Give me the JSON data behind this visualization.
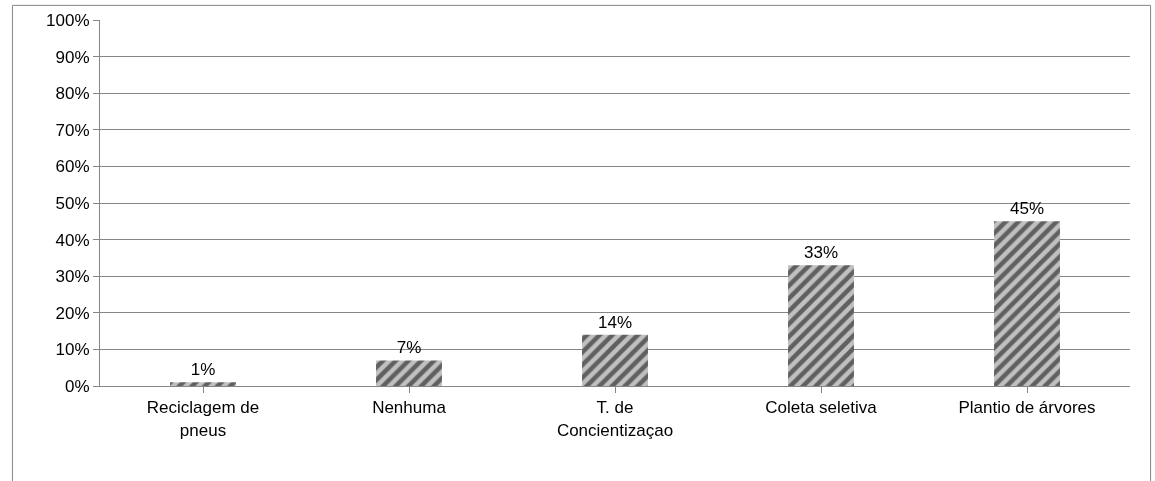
{
  "chart_data": {
    "type": "bar",
    "categories": [
      "Reciclagem de\npneus",
      "Nenhuma",
      "T. de\nConcientizaçao",
      "Coleta seletiva",
      "Plantio de árvores"
    ],
    "values": [
      1,
      7,
      14,
      33,
      45
    ],
    "value_labels": [
      "1%",
      "7%",
      "14%",
      "33%",
      "45%"
    ],
    "color": "#c0c0c0",
    "ylim": [
      0,
      100
    ],
    "yticks": [
      {
        "value": 0,
        "label": "0%"
      },
      {
        "value": 10,
        "label": "10%"
      },
      {
        "value": 20,
        "label": "20%"
      },
      {
        "value": 30,
        "label": "30%"
      },
      {
        "value": 40,
        "label": "40%"
      },
      {
        "value": 50,
        "label": "50%"
      },
      {
        "value": 60,
        "label": "60%"
      },
      {
        "value": 70,
        "label": "70%"
      },
      {
        "value": 80,
        "label": "80%"
      },
      {
        "value": 90,
        "label": "90%"
      },
      {
        "value": 100,
        "label": "100%"
      }
    ],
    "grid": "y",
    "legend": false
  }
}
